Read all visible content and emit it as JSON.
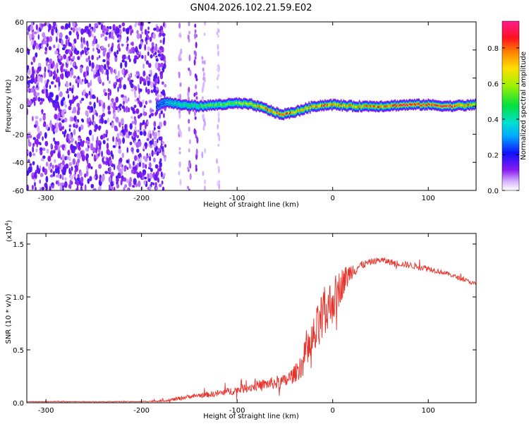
{
  "title": "GN04.2026.102.21.59.E02",
  "chart_data": [
    {
      "type": "heatmap",
      "xlabel": "Height of straight line (km)",
      "ylabel": "Frequency (Hz)",
      "xlim": [
        -320,
        150
      ],
      "ylim": [
        -60,
        60
      ],
      "x_ticks": [
        -300,
        -200,
        -100,
        0,
        100
      ],
      "y_ticks": [
        -60,
        -40,
        -20,
        0,
        20,
        40,
        60
      ],
      "colorbar": {
        "label": "Normalized spectral amplitude",
        "range": [
          0,
          0.95
        ],
        "ticks": [
          "0.0",
          "0.2",
          "0.4",
          "0.6",
          "0.8"
        ]
      },
      "noise_region_x": [
        -320,
        -175
      ],
      "ridge": {
        "x": [
          -185,
          -175,
          -160,
          -140,
          -120,
          -100,
          -85,
          -70,
          -55,
          -45,
          -35,
          -20,
          -5,
          0,
          20,
          50,
          80,
          100,
          120,
          150
        ],
        "freq": [
          0,
          3,
          1,
          0,
          1,
          2,
          1,
          -2,
          -6,
          -5,
          -3,
          0,
          1,
          1,
          0,
          0,
          1,
          1,
          0,
          1
        ],
        "amplitude": [
          0.2,
          0.35,
          0.45,
          0.5,
          0.55,
          0.6,
          0.7,
          0.8,
          0.85,
          0.8,
          0.75,
          0.8,
          0.85,
          0.8,
          0.75,
          0.8,
          0.9,
          0.85,
          0.9,
          0.7
        ]
      }
    },
    {
      "type": "line",
      "xlabel": "Height of straight line (km)",
      "ylabel": "SNR (10 * v/v)",
      "y_multiplier": "(x10",
      "y_multiplier_exp": "4",
      "xlim": [
        -320,
        150
      ],
      "ylim": [
        0,
        1.6
      ],
      "x_ticks": [
        -300,
        -200,
        -100,
        0,
        100
      ],
      "y_ticks": [
        "0.0",
        "0.5",
        "1.0",
        "1.5"
      ],
      "series": [
        {
          "color": "#e8332b",
          "x": [
            -320,
            -250,
            -200,
            -175,
            -160,
            -150,
            -140,
            -125,
            -100,
            -75,
            -50,
            -40,
            -30,
            -20,
            -10,
            0,
            10,
            20,
            30,
            40,
            50,
            60,
            80,
            100,
            120,
            150
          ],
          "y": [
            0.01,
            0.01,
            0.01,
            0.02,
            0.04,
            0.06,
            0.07,
            0.08,
            0.12,
            0.17,
            0.2,
            0.27,
            0.4,
            0.6,
            0.8,
            0.97,
            1.13,
            1.25,
            1.3,
            1.33,
            1.35,
            1.33,
            1.3,
            1.27,
            1.22,
            1.12
          ],
          "noise_amp": [
            0.003,
            0.003,
            0.004,
            0.01,
            0.02,
            0.02,
            0.02,
            0.03,
            0.04,
            0.05,
            0.07,
            0.08,
            0.15,
            0.22,
            0.28,
            0.22,
            0.15,
            0.08,
            0.04,
            0.03,
            0.03,
            0.03,
            0.03,
            0.03,
            0.02,
            0.02
          ]
        }
      ]
    }
  ]
}
